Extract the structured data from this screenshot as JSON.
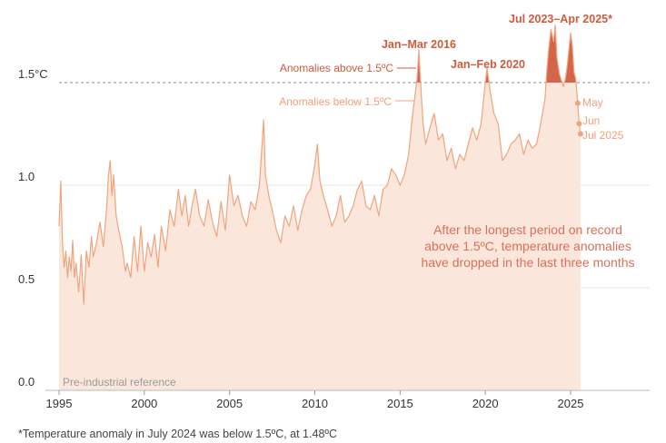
{
  "chart_data": {
    "type": "area",
    "title": "",
    "xlabel": "",
    "ylabel": "",
    "xlim": [
      1994.6,
      2029.5
    ],
    "ylim": [
      0,
      1.8
    ],
    "x_ticks": [
      "1995",
      "2000",
      "2005",
      "2010",
      "2015",
      "2020",
      "2025"
    ],
    "y_ticks": [
      {
        "value": 0.0,
        "label": "0.0"
      },
      {
        "value": 0.5,
        "label": "0.5"
      },
      {
        "value": 1.0,
        "label": "1.0"
      },
      {
        "value": 1.5,
        "label": "1.5°C"
      }
    ],
    "threshold": 1.5,
    "grid": true,
    "colors": {
      "line": "#f0a47e",
      "fill": "#fbe6dc",
      "above": "#d4644a",
      "label_dark": "#cf5a3c",
      "threshold_line": "#888888"
    },
    "series": [
      {
        "name": "",
        "x": [
          1995.0,
          1995.1,
          1995.2,
          1995.3,
          1995.4,
          1995.5,
          1995.6,
          1995.7,
          1995.8,
          1995.9,
          1996.0,
          1996.15,
          1996.3,
          1996.45,
          1996.6,
          1996.75,
          1996.9,
          1997.0,
          1997.2,
          1997.4,
          1997.6,
          1997.8,
          1997.9,
          1998.0,
          1998.1,
          1998.2,
          1998.35,
          1998.5,
          1998.7,
          1998.9,
          1999.0,
          1999.2,
          1999.4,
          1999.6,
          1999.8,
          2000.0,
          2000.2,
          2000.4,
          2000.6,
          2000.8,
          2001.0,
          2001.25,
          2001.5,
          2001.75,
          2002.0,
          2002.2,
          2002.4,
          2002.6,
          2002.8,
          2003.0,
          2003.25,
          2003.5,
          2003.75,
          2004.0,
          2004.25,
          2004.5,
          2004.75,
          2005.0,
          2005.25,
          2005.5,
          2005.75,
          2006.0,
          2006.25,
          2006.5,
          2006.75,
          2007.0,
          2007.1,
          2007.3,
          2007.5,
          2007.75,
          2008.0,
          2008.25,
          2008.5,
          2008.75,
          2009.0,
          2009.25,
          2009.5,
          2009.75,
          2010.0,
          2010.15,
          2010.3,
          2010.5,
          2010.75,
          2011.0,
          2011.25,
          2011.5,
          2011.75,
          2012.0,
          2012.25,
          2012.5,
          2012.75,
          2013.0,
          2013.25,
          2013.5,
          2013.75,
          2014.0,
          2014.25,
          2014.5,
          2014.75,
          2015.0,
          2015.25,
          2015.5,
          2015.7,
          2015.85,
          2016.0,
          2016.1,
          2016.2,
          2016.35,
          2016.5,
          2016.75,
          2017.0,
          2017.25,
          2017.5,
          2017.75,
          2018.0,
          2018.25,
          2018.5,
          2018.75,
          2019.0,
          2019.25,
          2019.5,
          2019.75,
          2019.9,
          2020.0,
          2020.1,
          2020.3,
          2020.5,
          2020.75,
          2021.0,
          2021.25,
          2021.5,
          2021.75,
          2022.0,
          2022.25,
          2022.5,
          2022.75,
          2023.0,
          2023.2,
          2023.35,
          2023.5,
          2023.6,
          2023.7,
          2023.85,
          2024.0,
          2024.1,
          2024.2,
          2024.35,
          2024.5,
          2024.58,
          2024.7,
          2024.8,
          2025.0,
          2025.1,
          2025.2,
          2025.3,
          2025.42,
          2025.5,
          2025.58
        ],
        "values": [
          0.8,
          1.02,
          0.72,
          0.6,
          0.68,
          0.55,
          0.65,
          0.58,
          0.73,
          0.55,
          0.62,
          0.48,
          0.66,
          0.42,
          0.68,
          0.6,
          0.75,
          0.65,
          0.72,
          0.82,
          0.7,
          0.9,
          1.05,
          1.12,
          0.95,
          1.05,
          0.85,
          0.78,
          0.7,
          0.58,
          0.62,
          0.55,
          0.75,
          0.58,
          0.8,
          0.58,
          0.72,
          0.65,
          0.76,
          0.6,
          0.8,
          0.68,
          0.88,
          0.8,
          0.98,
          0.85,
          0.95,
          0.8,
          0.9,
          0.98,
          0.85,
          0.8,
          0.93,
          0.82,
          0.75,
          0.92,
          0.78,
          1.05,
          0.9,
          0.95,
          0.85,
          0.8,
          0.92,
          0.88,
          1.0,
          1.32,
          1.05,
          0.95,
          0.88,
          0.78,
          0.72,
          0.85,
          0.8,
          0.9,
          0.78,
          0.88,
          0.95,
          0.98,
          1.1,
          1.2,
          1.02,
          0.95,
          0.88,
          0.8,
          0.85,
          0.95,
          0.82,
          0.85,
          0.9,
          0.98,
          1.02,
          0.9,
          0.88,
          0.95,
          0.85,
          0.98,
          1.0,
          1.08,
          1.05,
          1.0,
          1.05,
          1.15,
          1.32,
          1.42,
          1.52,
          1.66,
          1.5,
          1.3,
          1.2,
          1.28,
          1.35,
          1.22,
          1.25,
          1.12,
          1.18,
          1.08,
          1.15,
          1.12,
          1.2,
          1.28,
          1.22,
          1.3,
          1.42,
          1.5,
          1.57,
          1.45,
          1.35,
          1.3,
          1.12,
          1.15,
          1.2,
          1.22,
          1.25,
          1.15,
          1.22,
          1.18,
          1.2,
          1.28,
          1.35,
          1.42,
          1.55,
          1.65,
          1.76,
          1.7,
          1.78,
          1.62,
          1.54,
          1.5,
          1.48,
          1.52,
          1.58,
          1.74,
          1.68,
          1.55,
          1.52,
          1.4,
          1.3,
          1.25
        ]
      }
    ],
    "annotations": {
      "jan_mar_2016": "Jan–Mar 2016",
      "jan_feb_2020": "Jan–Feb 2020",
      "jul2023_apr2025": "Jul 2023–Apr 2025*",
      "above_label": "Anomalies above 1.5ºC",
      "below_label": "Anomalies below 1.5ºC",
      "may": "May",
      "jun": "Jun",
      "jul2025": "Jul 2025",
      "note": [
        "After the longest period on record",
        "above 1.5ºC, temperature anomalies",
        "have dropped in the last three months"
      ],
      "reference": "Pre-industrial reference"
    },
    "recent_points": [
      {
        "x": 2025.42,
        "y": 1.4
      },
      {
        "x": 2025.5,
        "y": 1.3
      },
      {
        "x": 2025.58,
        "y": 1.25
      }
    ]
  },
  "footnote": "*Temperature anomaly in July 2024 was below 1.5ºC, at 1.48ºC"
}
